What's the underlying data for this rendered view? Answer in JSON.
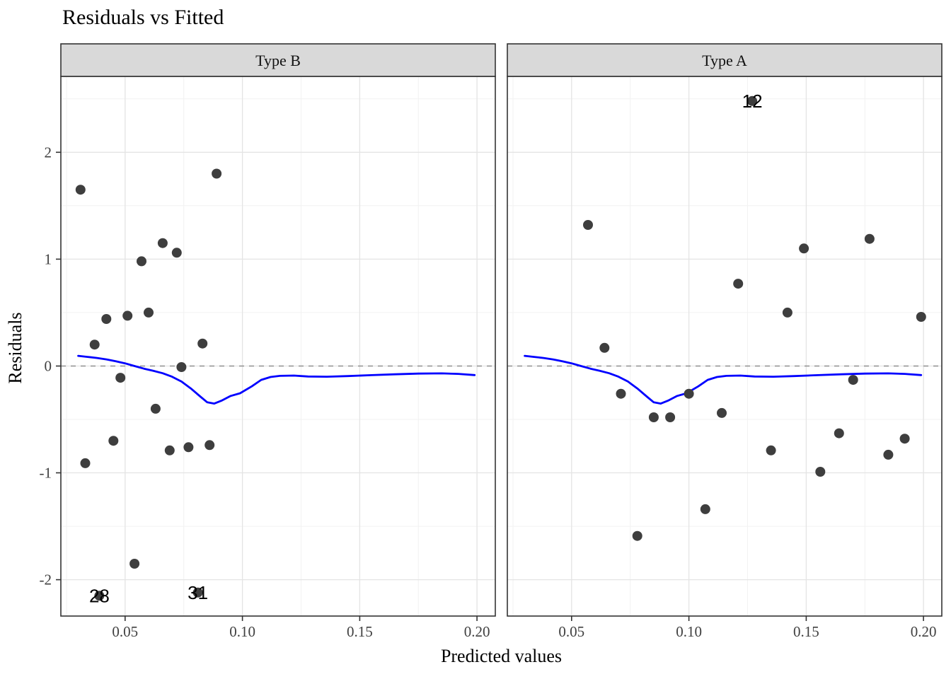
{
  "chart_data": {
    "type": "scatter",
    "title": "Residuals vs Fitted",
    "xlabel": "Predicted values",
    "ylabel": "Residuals",
    "grid": true,
    "legend_position": "none",
    "x_range": [
      0.0226,
      0.2078
    ],
    "y_range": [
      -2.34,
      2.71
    ],
    "x_ticks": {
      "values": [
        0.05,
        0.1,
        0.15,
        0.2
      ],
      "labels": [
        "0.05",
        "0.10",
        "0.15",
        "0.20"
      ]
    },
    "y_ticks": {
      "values": [
        2,
        1,
        0,
        -1,
        -2
      ],
      "labels": [
        "2",
        "1",
        "0",
        "-1",
        "-2"
      ]
    },
    "x_minor": [
      0.025,
      0.075,
      0.125,
      0.175
    ],
    "y_minor": [
      2.5,
      1.5,
      0.5,
      -0.5,
      -1.5
    ],
    "zero_line_y": 0,
    "facets": [
      {
        "label": "Type B",
        "points": [
          [
            0.031,
            1.65
          ],
          [
            0.089,
            1.8
          ],
          [
            0.066,
            1.15
          ],
          [
            0.072,
            1.06
          ],
          [
            0.057,
            0.98
          ],
          [
            0.042,
            0.44
          ],
          [
            0.051,
            0.47
          ],
          [
            0.06,
            0.5
          ],
          [
            0.037,
            0.2
          ],
          [
            0.083,
            0.21
          ],
          [
            0.074,
            -0.01
          ],
          [
            0.048,
            -0.11
          ],
          [
            0.063,
            -0.4
          ],
          [
            0.045,
            -0.7
          ],
          [
            0.033,
            -0.91
          ],
          [
            0.069,
            -0.79
          ],
          [
            0.077,
            -0.76
          ],
          [
            0.086,
            -0.74
          ],
          [
            0.054,
            -1.85
          ],
          [
            0.039,
            -2.15
          ],
          [
            0.081,
            -2.12
          ]
        ],
        "labeled_points": [
          {
            "x": 0.039,
            "y": -2.15,
            "label": "28"
          },
          {
            "x": 0.081,
            "y": -2.12,
            "label": "31"
          }
        ]
      },
      {
        "label": "Type A",
        "points": [
          [
            0.057,
            1.32
          ],
          [
            0.127,
            2.48
          ],
          [
            0.149,
            1.1
          ],
          [
            0.177,
            1.19
          ],
          [
            0.121,
            0.77
          ],
          [
            0.142,
            0.5
          ],
          [
            0.199,
            0.46
          ],
          [
            0.064,
            0.17
          ],
          [
            0.071,
            -0.26
          ],
          [
            0.1,
            -0.26
          ],
          [
            0.085,
            -0.48
          ],
          [
            0.092,
            -0.48
          ],
          [
            0.114,
            -0.44
          ],
          [
            0.17,
            -0.13
          ],
          [
            0.164,
            -0.63
          ],
          [
            0.135,
            -0.79
          ],
          [
            0.156,
            -0.99
          ],
          [
            0.185,
            -0.83
          ],
          [
            0.192,
            -0.68
          ],
          [
            0.107,
            -1.34
          ],
          [
            0.078,
            -1.59
          ]
        ],
        "labeled_points": [
          {
            "x": 0.127,
            "y": 2.48,
            "label": "12"
          }
        ]
      }
    ],
    "smooth_line": [
      [
        0.03,
        0.095
      ],
      [
        0.034,
        0.085
      ],
      [
        0.038,
        0.075
      ],
      [
        0.042,
        0.062
      ],
      [
        0.046,
        0.045
      ],
      [
        0.05,
        0.025
      ],
      [
        0.054,
        0.0
      ],
      [
        0.058,
        -0.025
      ],
      [
        0.062,
        -0.045
      ],
      [
        0.066,
        -0.068
      ],
      [
        0.07,
        -0.1
      ],
      [
        0.074,
        -0.145
      ],
      [
        0.078,
        -0.21
      ],
      [
        0.082,
        -0.285
      ],
      [
        0.085,
        -0.34
      ],
      [
        0.088,
        -0.352
      ],
      [
        0.091,
        -0.325
      ],
      [
        0.095,
        -0.28
      ],
      [
        0.099,
        -0.255
      ],
      [
        0.104,
        -0.19
      ],
      [
        0.108,
        -0.13
      ],
      [
        0.112,
        -0.103
      ],
      [
        0.116,
        -0.092
      ],
      [
        0.122,
        -0.09
      ],
      [
        0.128,
        -0.098
      ],
      [
        0.136,
        -0.1
      ],
      [
        0.145,
        -0.094
      ],
      [
        0.155,
        -0.086
      ],
      [
        0.165,
        -0.078
      ],
      [
        0.175,
        -0.071
      ],
      [
        0.185,
        -0.069
      ],
      [
        0.192,
        -0.074
      ],
      [
        0.199,
        -0.085
      ]
    ],
    "colors": {
      "point": "#3E3E3E",
      "smooth_line": "#0000FF",
      "zero_line": "#909090",
      "strip_bg": "#D9D9D9",
      "panel_border": "#333333",
      "grid_major": "#E4E4E4",
      "grid_minor": "#F2F2F2",
      "tick_text": "#404040",
      "label_text": "#000000"
    }
  }
}
